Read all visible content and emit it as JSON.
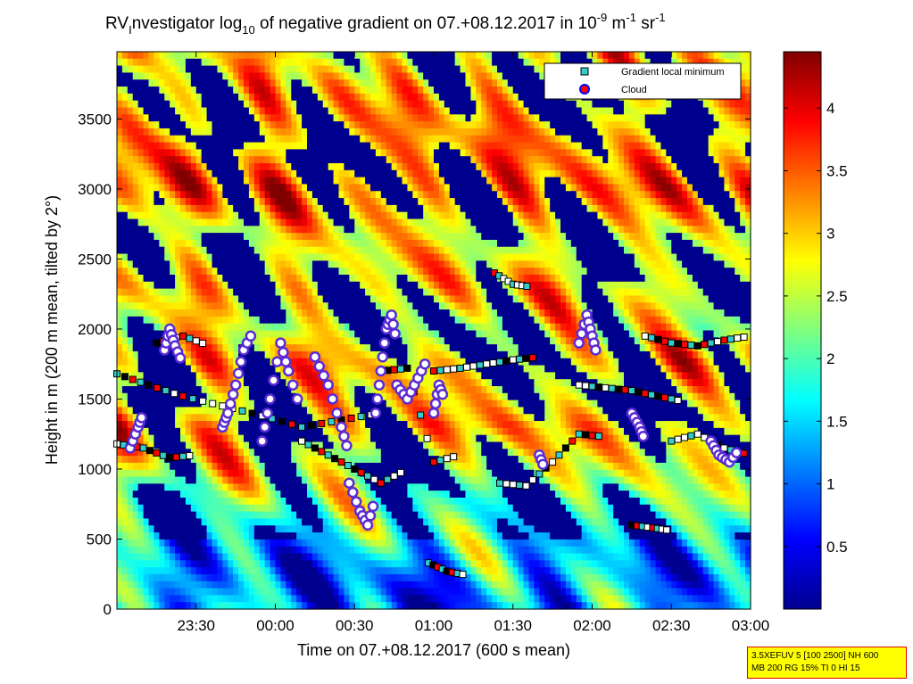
{
  "chart_data": {
    "type": "heatmap",
    "title": {
      "prefix": "RV",
      "prefix_sub": "I",
      "main": "nvestigator log",
      "log_sub": "10",
      "rest": " of negative gradient on 07.+08.12.2017 in 10",
      "exp1": "-9",
      "unit1": " m",
      "exp2": "-1",
      "unit2": " sr",
      "exp3": "-1"
    },
    "xlabel": "Time on 07.+08.12.2017 (600 s mean)",
    "ylabel": "Height in m (200 m mean, tilted by 2°)",
    "x_ticks": [
      {
        "value": 30,
        "label": "23:30"
      },
      {
        "value": 60,
        "label": "00:00"
      },
      {
        "value": 90,
        "label": "00:30"
      },
      {
        "value": 120,
        "label": "01:00"
      },
      {
        "value": 150,
        "label": "01:30"
      },
      {
        "value": 180,
        "label": "02:00"
      },
      {
        "value": 210,
        "label": "02:30"
      },
      {
        "value": 240,
        "label": "03:00"
      }
    ],
    "xlim": [
      0,
      240
    ],
    "ylim": [
      0,
      3980
    ],
    "y_ticks": [
      0,
      500,
      1000,
      1500,
      2000,
      2500,
      3000,
      3500
    ],
    "colorbar": {
      "range": [
        0,
        4.45
      ],
      "ticks": [
        0.5,
        1,
        1.5,
        2,
        2.5,
        3,
        3.5,
        4
      ],
      "colormap": "jet"
    },
    "legend": {
      "position": "top-right",
      "entries": [
        {
          "label": "Gradient local minimum",
          "marker": "square",
          "color": "#33cccc"
        },
        {
          "label": "Cloud",
          "marker": "circle",
          "color": "#ff0000",
          "edge": "#0000ff"
        }
      ]
    },
    "bands": [
      {
        "height": 200,
        "level": 1.1
      },
      {
        "height": 450,
        "level": 1.45
      },
      {
        "height": 750,
        "level": 1.85
      },
      {
        "height": 1050,
        "level": 2.4
      },
      {
        "height": 1300,
        "level": 2.9
      },
      {
        "height": 1500,
        "level": 2.6
      },
      {
        "height": 1750,
        "level": 2.8
      },
      {
        "height": 2000,
        "level": 2.3
      },
      {
        "height": 2300,
        "level": 2.7
      },
      {
        "height": 2650,
        "level": 2.5
      },
      {
        "height": 3000,
        "level": 3.1
      },
      {
        "height": 3500,
        "level": 2.9
      },
      {
        "height": 3850,
        "level": 2.6
      }
    ],
    "minima_tracks": [
      {
        "x": [
          0,
          10,
          20,
          30
        ],
        "y": [
          1180,
          1150,
          1080,
          1100
        ]
      },
      {
        "x": [
          0,
          12,
          25,
          40
        ],
        "y": [
          1680,
          1600,
          1520,
          1450
        ]
      },
      {
        "x": [
          15,
          25,
          35
        ],
        "y": [
          1900,
          1950,
          1880
        ]
      },
      {
        "x": [
          120,
          130,
          140,
          150,
          160
        ],
        "y": [
          1700,
          1720,
          1750,
          1780,
          1800
        ]
      },
      {
        "x": [
          145,
          155,
          165,
          175,
          185
        ],
        "y": [
          900,
          880,
          1050,
          1250,
          1230
        ]
      },
      {
        "x": [
          175,
          185,
          195,
          205,
          215
        ],
        "y": [
          1600,
          1580,
          1560,
          1520,
          1480
        ]
      },
      {
        "x": [
          200,
          210,
          220,
          230,
          240
        ],
        "y": [
          1950,
          1900,
          1880,
          1920,
          1950
        ]
      },
      {
        "x": [
          118,
          125,
          133
        ],
        "y": [
          330,
          270,
          240
        ]
      },
      {
        "x": [
          195,
          203,
          210
        ],
        "y": [
          600,
          580,
          560
        ]
      },
      {
        "x": [
          143,
          150,
          157
        ],
        "y": [
          2400,
          2320,
          2300
        ]
      },
      {
        "x": [
          210,
          220,
          230,
          240
        ],
        "y": [
          1200,
          1250,
          1150,
          1100
        ]
      },
      {
        "x": [
          40,
          55,
          70,
          85,
          100
        ],
        "y": [
          1450,
          1380,
          1300,
          1350,
          1400
        ]
      },
      {
        "x": [
          70,
          80,
          90,
          100,
          110
        ],
        "y": [
          1200,
          1100,
          1000,
          900,
          1000
        ]
      },
      {
        "x": [
          100,
          110,
          120,
          130
        ],
        "y": [
          1700,
          1720,
          1050,
          1100
        ]
      }
    ],
    "cloud_tracks": [
      {
        "x": [
          5,
          8,
          10
        ],
        "y": [
          1150,
          1300,
          1400
        ]
      },
      {
        "x": [
          18,
          20,
          22,
          25
        ],
        "y": [
          1850,
          2000,
          1880,
          1750
        ]
      },
      {
        "x": [
          40,
          42,
          45,
          48,
          52
        ],
        "y": [
          1300,
          1400,
          1600,
          1850,
          2000
        ]
      },
      {
        "x": [
          55,
          58,
          62,
          65,
          70
        ],
        "y": [
          1200,
          1500,
          1900,
          1700,
          1400
        ]
      },
      {
        "x": [
          75,
          80,
          85,
          88
        ],
        "y": [
          1800,
          1600,
          1300,
          1100
        ]
      },
      {
        "x": [
          88,
          92,
          95,
          98
        ],
        "y": [
          900,
          700,
          600,
          800
        ]
      },
      {
        "x": [
          98,
          100,
          102,
          104,
          106
        ],
        "y": [
          1400,
          1700,
          2000,
          2100,
          1900
        ]
      },
      {
        "x": [
          106,
          110,
          114,
          118
        ],
        "y": [
          1600,
          1500,
          1650,
          1800
        ]
      },
      {
        "x": [
          120,
          122,
          124
        ],
        "y": [
          1400,
          1600,
          1500
        ]
      },
      {
        "x": [
          160,
          162
        ],
        "y": [
          1100,
          1000
        ]
      },
      {
        "x": [
          175,
          178,
          180,
          182
        ],
        "y": [
          1900,
          2100,
          1950,
          1800
        ]
      },
      {
        "x": [
          195,
          198,
          200
        ],
        "y": [
          1400,
          1300,
          1200
        ]
      },
      {
        "x": [
          225,
          228,
          232,
          236
        ],
        "y": [
          1200,
          1100,
          1050,
          1150
        ]
      }
    ]
  },
  "info_box": {
    "line1": "3.5XEFUV 5 [100 2500] NH 600",
    "line2": "MB 200 RG 15% TI 0 HI 15"
  }
}
